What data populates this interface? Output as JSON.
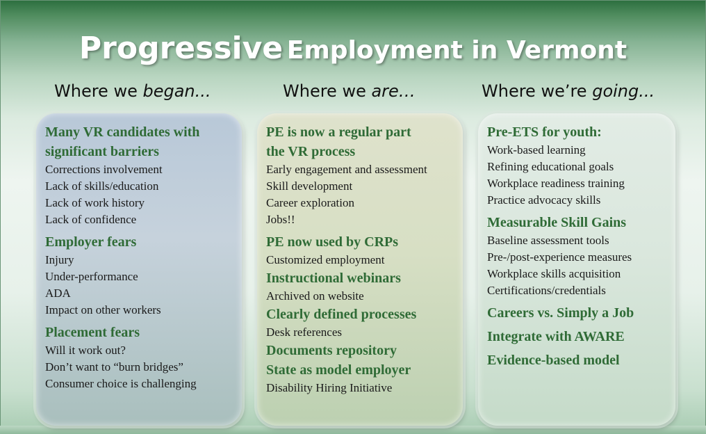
{
  "title": {
    "part1": "Progressive",
    "part2": "Employment in Vermont"
  },
  "columns": [
    {
      "head_plain": "Where we ",
      "head_em": "began...",
      "sections": [
        {
          "heading": [
            "Many VR candidates with",
            "significant barriers"
          ],
          "items": [
            "Corrections involvement",
            "Lack of skills/education",
            "Lack of work history",
            "Lack of confidence"
          ]
        },
        {
          "heading": [
            "Employer fears"
          ],
          "items": [
            "Injury",
            "Under-performance",
            "ADA",
            "Impact on other workers"
          ]
        },
        {
          "heading": [
            "Placement fears"
          ],
          "items": [
            "Will it work out?",
            "Don’t want to “burn bridges”",
            "Consumer choice is challenging"
          ]
        }
      ]
    },
    {
      "head_plain": "Where we ",
      "head_em": "are…",
      "sections": [
        {
          "heading": [
            "PE is now a regular part",
            "the VR process"
          ],
          "items": [
            "Early engagement and assessment",
            "Skill development",
            "Career exploration",
            "Jobs!!"
          ]
        },
        {
          "heading": [
            "PE now used by CRPs"
          ],
          "items": [
            "Customized employment"
          ]
        },
        {
          "heading": [
            "Instructional webinars"
          ],
          "items": [
            "Archived on website"
          ]
        },
        {
          "heading": [
            "Clearly defined processes"
          ],
          "items": [
            "Desk references"
          ]
        },
        {
          "heading": [
            "Documents repository"
          ],
          "items": []
        },
        {
          "heading": [
            "State as model employer"
          ],
          "items": [
            "Disability Hiring Initiative"
          ]
        }
      ]
    },
    {
      "head_plain": "Where we’re ",
      "head_em": "going...",
      "sections": [
        {
          "heading": [
            "Pre-ETS for youth:"
          ],
          "items": [
            "Work-based learning",
            "Refining educational goals",
            "Workplace readiness training",
            "Practice advocacy skills"
          ]
        },
        {
          "heading": [
            "Measurable Skill Gains"
          ],
          "items": [
            "Baseline assessment tools",
            "Pre-/post-experience measures",
            "Workplace skills acquisition",
            "Certifications/credentials"
          ]
        },
        {
          "heading": [
            "Careers vs. Simply a Job"
          ],
          "items": []
        },
        {
          "heading": [
            "Integrate with AWARE"
          ],
          "items": []
        },
        {
          "heading": [
            "Evidence-based model"
          ],
          "items": []
        }
      ]
    }
  ]
}
